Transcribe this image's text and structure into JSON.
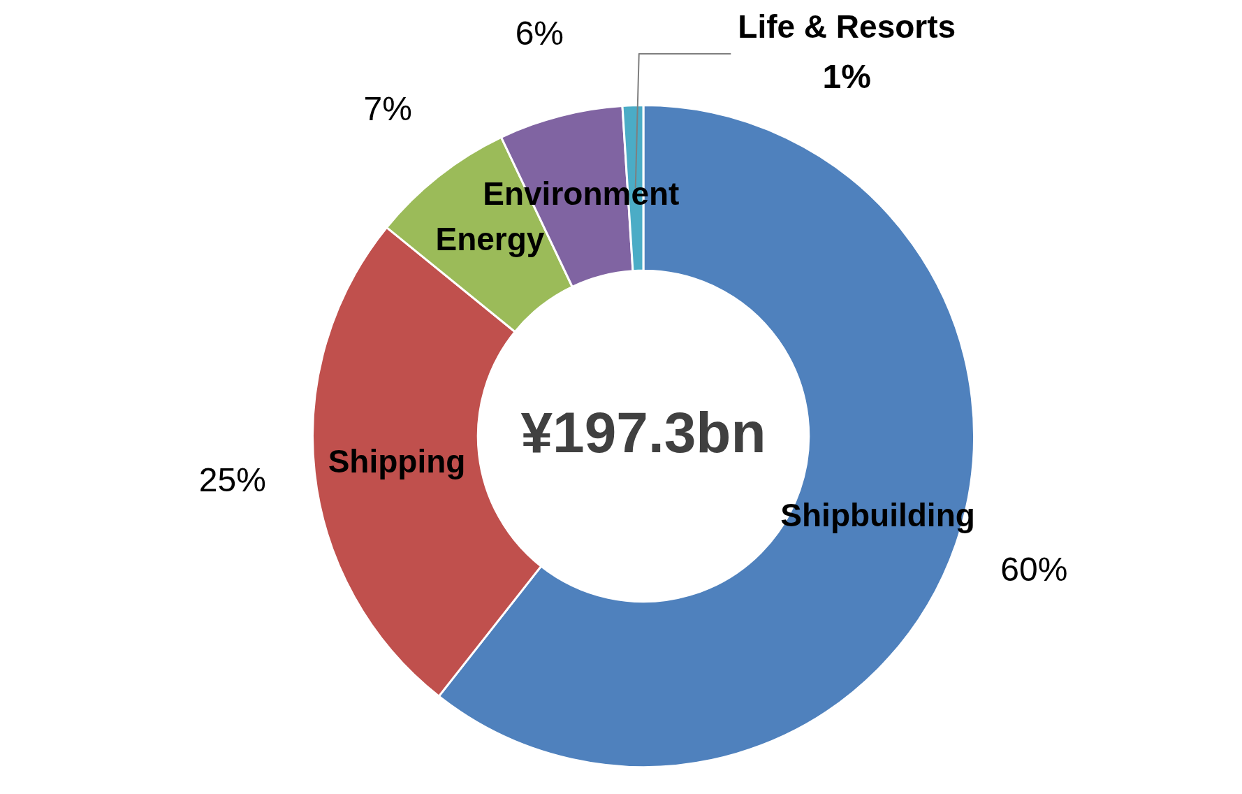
{
  "chart_data": {
    "type": "donut",
    "categories": [
      "Shipbuilding",
      "Shipping",
      "Energy",
      "Environment",
      "Life & Resorts"
    ],
    "values": [
      60,
      25,
      7,
      6,
      1
    ],
    "colors": [
      "#4f81bd",
      "#c0504d",
      "#9bbb59",
      "#8064a2",
      "#4bacc6"
    ],
    "value_labels": [
      "60%",
      "25%",
      "7%",
      "6%",
      "1%"
    ],
    "annotations": [
      "¥197.3bn"
    ]
  }
}
